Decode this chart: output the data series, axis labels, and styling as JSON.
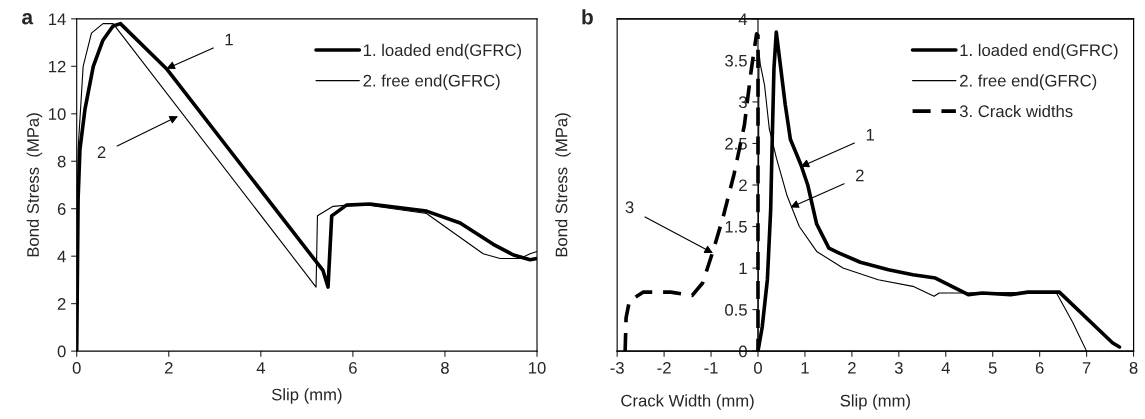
{
  "chart_data": [
    {
      "type": "line",
      "title": "a",
      "xlabel": "Slip (mm)",
      "ylabel": "Bond Stress  (MPa)",
      "xlim": [
        0,
        10
      ],
      "ylim": [
        0,
        14
      ],
      "xticks": [
        0,
        2,
        4,
        6,
        8,
        10
      ],
      "yticks": [
        0,
        2,
        4,
        6,
        8,
        10,
        12,
        14
      ],
      "grid": false,
      "legend": "top right",
      "marker": "none",
      "series": [
        {
          "name": "1. loaded end(GFRC)",
          "color": "#000000",
          "line_style": "solid",
          "x": [
            0,
            0.03,
            0.07,
            0.18,
            0.36,
            0.57,
            0.79,
            0.95,
            1.95,
            5.35,
            5.46,
            5.54,
            5.86,
            6.37,
            7.6,
            8.33,
            9.05,
            9.49,
            9.85,
            10
          ],
          "values": [
            0,
            6.4,
            8.5,
            10.2,
            12.0,
            13.1,
            13.7,
            13.8,
            11.9,
            3.4,
            2.7,
            5.7,
            6.15,
            6.2,
            5.9,
            5.4,
            4.5,
            4.05,
            3.85,
            3.9
          ]
        },
        {
          "name": "2. free end(GFRC)",
          "color": "#000000",
          "line_style": "solid",
          "x": [
            0,
            0.03,
            0.14,
            0.32,
            0.57,
            0.79,
            5.2,
            5.23,
            5.57,
            6.15,
            7.6,
            8.18,
            8.83,
            9.2,
            9.63,
            9.85,
            10
          ],
          "values": [
            0,
            8.5,
            12.0,
            13.4,
            13.8,
            13.8,
            2.7,
            5.7,
            6.1,
            6.2,
            5.8,
            5.0,
            4.1,
            3.9,
            3.9,
            4.1,
            4.2
          ]
        }
      ],
      "annotations": [
        {
          "text": "1",
          "x": 1.95,
          "y": 11.9
        },
        {
          "text": "2",
          "x": 2.2,
          "y": 9.9
        }
      ]
    },
    {
      "type": "line",
      "title": "b",
      "xlabel": "Slip (mm)",
      "ylabel": "Bond Stress  (MPa)",
      "xlim": [
        -3,
        8
      ],
      "ylim": [
        0,
        4
      ],
      "xticks": [
        {
          "value": -3,
          "label": "-3"
        },
        {
          "value": -2,
          "label": "-2"
        },
        {
          "value": -1,
          "label": "-1"
        },
        0,
        1,
        2,
        3,
        4,
        5,
        6,
        7,
        8
      ],
      "yticks": [
        0,
        0.5,
        1,
        1.5,
        2,
        2.5,
        3,
        3.5,
        4
      ],
      "grid": false,
      "legend": "top right",
      "marker": "none",
      "series": [
        {
          "name": "1. loaded end(GFRC)",
          "color": "#000000",
          "line_style": "solid",
          "x": [
            0,
            0.09,
            0.2,
            0.27,
            0.3,
            0.34,
            0.39,
            0.46,
            0.58,
            0.69,
            0.91,
            1.06,
            1.25,
            1.51,
            1.73,
            2.18,
            2.78,
            3.3,
            3.78,
            4.48,
            4.78,
            5.38,
            5.75,
            6.42,
            7.55,
            7.7
          ],
          "values": [
            0,
            0.29,
            0.86,
            1.7,
            2.46,
            3.4,
            3.84,
            3.52,
            2.97,
            2.55,
            2.25,
            2.0,
            1.53,
            1.24,
            1.18,
            1.07,
            0.98,
            0.92,
            0.88,
            0.68,
            0.7,
            0.68,
            0.71,
            0.71,
            0.1,
            0.05
          ]
        },
        {
          "name": "2. free end(GFRC)",
          "color": "#000000",
          "line_style": "solid",
          "x": [
            0,
            0.02,
            0.05,
            0.14,
            0.24,
            0.39,
            0.62,
            0.88,
            1.25,
            1.81,
            2.56,
            3.3,
            3.75,
            3.86,
            4.42,
            6.35,
            6.7,
            7.0
          ],
          "values": [
            0,
            3.6,
            3.45,
            3.2,
            2.68,
            2.33,
            1.87,
            1.5,
            1.2,
            1.0,
            0.86,
            0.78,
            0.66,
            0.7,
            0.7,
            0.71,
            0.35,
            0
          ]
        },
        {
          "name": "3. Crack widths",
          "color": "#000000",
          "line_style": "dashed",
          "x": [
            -2.83,
            -2.81,
            -2.74,
            -2.45,
            -1.86,
            -1.4,
            -1.18,
            -0.96,
            -0.74,
            -0.51,
            -0.29,
            -0.14,
            -0.03,
            0,
            0
          ],
          "values": [
            0,
            0.4,
            0.6,
            0.71,
            0.71,
            0.67,
            0.82,
            1.2,
            1.62,
            2.13,
            2.72,
            3.4,
            3.82,
            3.8,
            0
          ]
        }
      ],
      "annotations": [
        {
          "text": "1",
          "x": 0.91,
          "y": 2.22
        },
        {
          "text": "2",
          "x": 0.69,
          "y": 1.73
        },
        {
          "text": "3",
          "x": -0.96,
          "y": 1.18
        },
        "Crack Width (mm)"
      ]
    }
  ]
}
